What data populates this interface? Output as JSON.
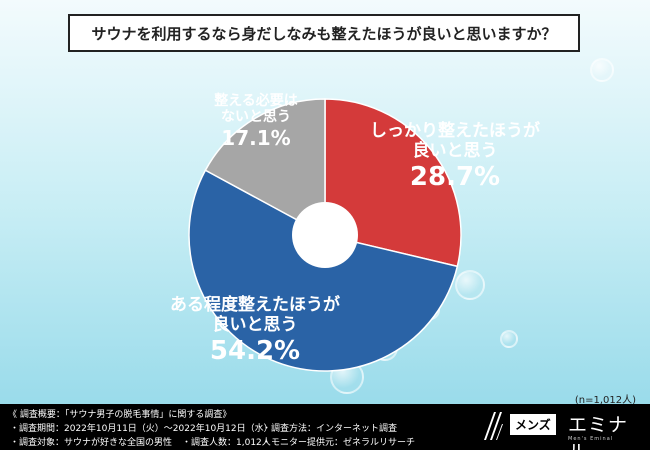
{
  "header": {
    "title": "サウナを利用するなら身だしなみも整えたほうが良いと思いますか？"
  },
  "chart_data": {
    "type": "pie",
    "title": "サウナを利用するなら身だしなみも整えたほうが良いと思いますか？",
    "slices": [
      {
        "label_line1": "しっかり整えたほうが",
        "label_line2": "良いと思う",
        "value": 28.7,
        "value_text": "28.7%",
        "color": "#d43a3a"
      },
      {
        "label_line1": "ある程度整えたほうが",
        "label_line2": "良いと思う",
        "value": 54.2,
        "value_text": "54.2%",
        "color": "#2a63a6"
      },
      {
        "label_line1": "整える必要は",
        "label_line2": "ないと思う",
        "value": 17.1,
        "value_text": "17.1%",
        "color": "#a6a6a6"
      }
    ],
    "legend": "none",
    "sample_size": "(n=1,012人)"
  },
  "footer": {
    "survey_title": "《 調査概要：「サウナ男子の脱毛事情」に関する調査》",
    "period": "・調査期間：2022年10月11日（火）～2022年10月12日（水）",
    "method": "・調査方法：インターネット調査",
    "target": "・調査対象：サウナが好きな全国の男性",
    "count": "・調査人数：1,012人",
    "provider": "・モニター提供元：ゼネラルリサーチ"
  },
  "brand": {
    "box_text": "メンズ",
    "name": "エミナル",
    "sub": "Men's Eminal"
  },
  "colors": {
    "red": "#d43a3a",
    "blue": "#2a63a6",
    "gray": "#a6a6a6",
    "footer_bg": "#000000"
  }
}
